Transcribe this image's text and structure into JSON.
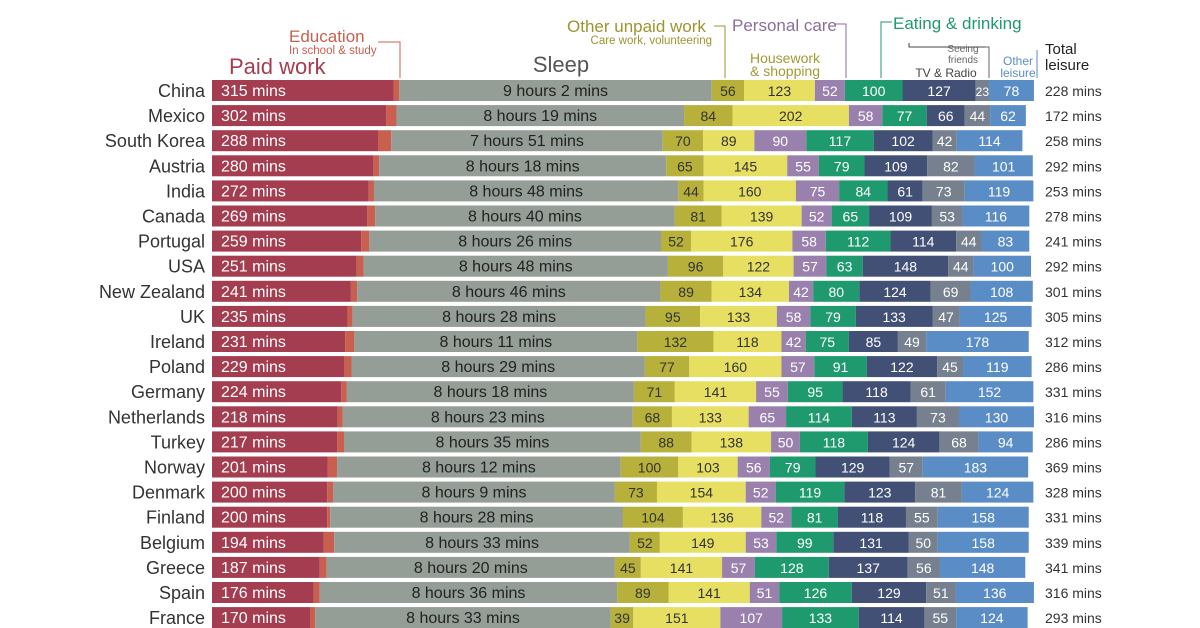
{
  "headers": {
    "paid_work": "Paid work",
    "education": "Education",
    "education_sub": "In school & study",
    "sleep": "Sleep",
    "other_unpaid": "Other unpaid work",
    "other_unpaid_sub": "Care work, volunteering",
    "personal_care": "Personal care",
    "housework_1": "Housework",
    "housework_2": "& shopping",
    "eating": "Eating & drinking",
    "seeing_friends_1": "Seeing",
    "seeing_friends_2": "friends",
    "tv_radio": "TV & Radio",
    "other_leisure_1": "Other",
    "other_leisure_2": "leisure",
    "total_leisure_1": "Total",
    "total_leisure_2": "leisure"
  },
  "chart_data": {
    "type": "bar",
    "stacked": true,
    "orientation": "horizontal",
    "unit": "mins per day",
    "categories": [
      "China",
      "Mexico",
      "South Korea",
      "Austria",
      "India",
      "Canada",
      "Portugal",
      "USA",
      "New Zealand",
      "UK",
      "Ireland",
      "Poland",
      "Germany",
      "Netherlands",
      "Turkey",
      "Norway",
      "Denmark",
      "Finland",
      "Belgium",
      "Greece",
      "Spain",
      "France"
    ],
    "paid_work_labels": [
      "315 mins",
      "302 mins",
      "288 mins",
      "280 mins",
      "272 mins",
      "269 mins",
      "259 mins",
      "251 mins",
      "241 mins",
      "235 mins",
      "231 mins",
      "229 mins",
      "224 mins",
      "218 mins",
      "217 mins",
      "201 mins",
      "200 mins",
      "200 mins",
      "194 mins",
      "187 mins",
      "176 mins",
      "170 mins"
    ],
    "sleep_labels": [
      "9 hours 2 mins",
      "8 hours 19 mins",
      "7 hours 51 mins",
      "8 hours 18 mins",
      "8 hours 48 mins",
      "8 hours 40 mins",
      "8 hours 26 mins",
      "8 hours 48 mins",
      "8 hours 46 mins",
      "8 hours 28 mins",
      "8 hours 11 mins",
      "8 hours 29 mins",
      "8 hours 18 mins",
      "8 hours 23 mins",
      "8 hours 35 mins",
      "8 hours 12 mins",
      "8 hours 9 mins",
      "8 hours 28 mins",
      "8 hours 33 mins",
      "8 hours 20 mins",
      "8 hours 36 mins",
      "8 hours 33 mins"
    ],
    "total_leisure_labels": [
      "228 mins",
      "172 mins",
      "258 mins",
      "292 mins",
      "253 mins",
      "278 mins",
      "241 mins",
      "292 mins",
      "301 mins",
      "305 mins",
      "312 mins",
      "286 mins",
      "331 mins",
      "316 mins",
      "286 mins",
      "369 mins",
      "328 mins",
      "331 mins",
      "339 mins",
      "341 mins",
      "316 mins",
      "293 mins"
    ],
    "series": [
      {
        "name": "Paid work",
        "key": "paid",
        "color": "#a33d4f",
        "values": [
          315,
          302,
          288,
          280,
          272,
          269,
          259,
          251,
          241,
          235,
          231,
          229,
          224,
          218,
          217,
          201,
          200,
          200,
          194,
          187,
          176,
          170
        ]
      },
      {
        "name": "Education",
        "key": "edu",
        "color": "#c9604f",
        "values": [
          10,
          18,
          23,
          10,
          9,
          14,
          14,
          12,
          11,
          9,
          16,
          13,
          10,
          9,
          12,
          16,
          10,
          5,
          18,
          12,
          11,
          9
        ]
      },
      {
        "name": "Sleep",
        "key": "sleep",
        "color": "#959d97",
        "values": [
          542,
          499,
          471,
          498,
          528,
          520,
          506,
          528,
          526,
          508,
          491,
          509,
          498,
          503,
          515,
          492,
          489,
          508,
          513,
          500,
          516,
          513
        ]
      },
      {
        "name": "Other unpaid work",
        "key": "unpaid",
        "color": "#b7b13b",
        "values": [
          56,
          84,
          70,
          65,
          44,
          81,
          52,
          96,
          89,
          95,
          132,
          77,
          71,
          68,
          88,
          100,
          73,
          104,
          52,
          45,
          89,
          39
        ]
      },
      {
        "name": "Housework & shopping",
        "key": "house",
        "color": "#e7df62",
        "values": [
          123,
          202,
          89,
          145,
          160,
          139,
          176,
          122,
          134,
          133,
          118,
          160,
          141,
          133,
          138,
          103,
          154,
          136,
          149,
          141,
          141,
          151
        ]
      },
      {
        "name": "Personal care",
        "key": "personal",
        "color": "#9a80ad",
        "values": [
          52,
          58,
          90,
          55,
          75,
          52,
          58,
          57,
          42,
          58,
          42,
          57,
          55,
          65,
          50,
          56,
          52,
          52,
          53,
          57,
          51,
          107
        ]
      },
      {
        "name": "Eating & drinking",
        "key": "eating",
        "color": "#1f9a6e",
        "values": [
          100,
          77,
          117,
          79,
          84,
          65,
          112,
          63,
          80,
          79,
          75,
          91,
          95,
          114,
          118,
          79,
          119,
          81,
          99,
          128,
          126,
          133
        ]
      },
      {
        "name": "TV & Radio",
        "key": "tv",
        "color": "#435076",
        "values": [
          127,
          66,
          102,
          109,
          61,
          109,
          114,
          148,
          124,
          133,
          85,
          122,
          118,
          113,
          124,
          129,
          123,
          118,
          131,
          137,
          129,
          114
        ]
      },
      {
        "name": "Seeing friends",
        "key": "friends",
        "color": "#76808f",
        "values": [
          23,
          44,
          42,
          82,
          73,
          53,
          44,
          44,
          69,
          47,
          49,
          45,
          61,
          73,
          68,
          57,
          81,
          55,
          50,
          56,
          51,
          55
        ]
      },
      {
        "name": "Other leisure",
        "key": "other",
        "color": "#5a8cc6",
        "values": [
          78,
          62,
          114,
          101,
          119,
          116,
          83,
          100,
          108,
          125,
          178,
          119,
          152,
          130,
          94,
          183,
          124,
          158,
          158,
          148,
          136,
          124
        ]
      }
    ],
    "label_colors": {
      "paid": "#ffffff",
      "sleep": "#222222",
      "unpaid": "#333333",
      "house": "#333333",
      "personal": "#ffffff",
      "eating": "#ffffff",
      "tv": "#ffffff",
      "friends": "#ffffff",
      "other": "#ffffff"
    },
    "header_colors": {
      "paid": "#a33d4f",
      "edu": "#c9604f",
      "sleep": "#555555",
      "unpaid": "#9b9530",
      "house": "#a09a35",
      "personal": "#8a6e9e",
      "eating": "#1f9a6e",
      "tv": "#444444",
      "friends": "#666666",
      "other": "#5a8cc6",
      "total": "#222222"
    }
  }
}
